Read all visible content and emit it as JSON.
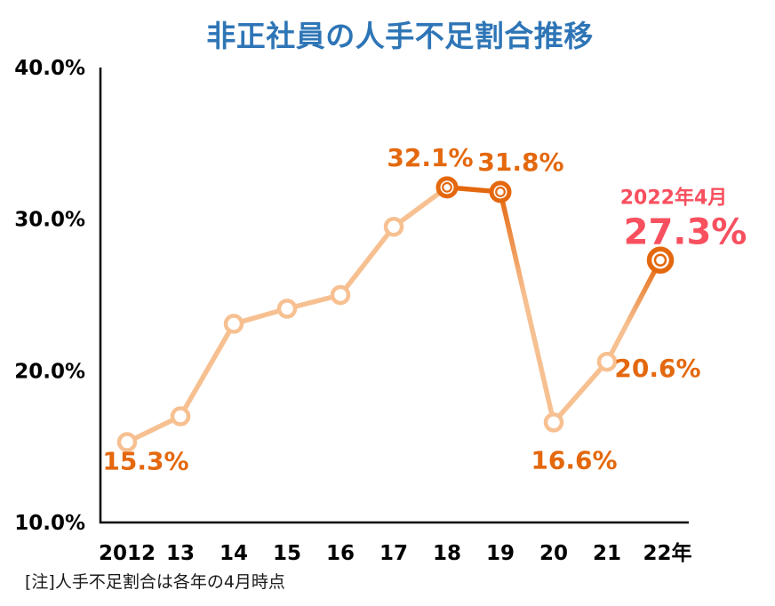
{
  "chart_data": {
    "type": "line",
    "title": "非正社員の人手不足割合推移",
    "note": "[注]人手不足割合は各年の4月時点",
    "categories": [
      "2012",
      "13",
      "14",
      "15",
      "16",
      "17",
      "18",
      "19",
      "20",
      "21",
      "22年"
    ],
    "years": [
      2012,
      2013,
      2014,
      2015,
      2016,
      2017,
      2018,
      2019,
      2020,
      2021,
      2022
    ],
    "values": [
      15.3,
      17.0,
      23.1,
      24.1,
      25.0,
      29.5,
      32.1,
      31.8,
      16.6,
      20.6,
      27.3
    ],
    "ylim": [
      10,
      40
    ],
    "y_ticks": [
      {
        "value": 40,
        "label": "40.0%"
      },
      {
        "value": 30,
        "label": "30.0%"
      },
      {
        "value": 20,
        "label": "20.0%"
      },
      {
        "value": 10,
        "label": "10.0%"
      }
    ],
    "grid": false,
    "legend": false,
    "highlighted_years": [
      2018,
      2019,
      2022
    ],
    "segments": [
      "light",
      "light",
      "light",
      "light",
      "light",
      "light",
      "dark",
      "fade_out",
      "light",
      "fade_in"
    ],
    "point_labels": [
      {
        "year": 2012,
        "text": "15.3%",
        "color": "#E4680E"
      },
      {
        "year": 2018,
        "text": "32.1%",
        "color": "#E4680E"
      },
      {
        "year": 2019,
        "text": "31.8%",
        "color": "#E4680E"
      },
      {
        "year": 2020,
        "text": "16.6%",
        "color": "#E4680E"
      },
      {
        "year": 2021,
        "text": "20.6%",
        "color": "#E4680E"
      },
      {
        "year": 2022,
        "text": "27.3%",
        "color": "#F8505F",
        "annotation": "2022年4月"
      }
    ],
    "colors": {
      "title": "#2E75B6",
      "axis": "#000000",
      "line_light": "#F7C091",
      "line_dark": "#E4680E",
      "label_orange": "#E4680E",
      "label_red": "#F8505F",
      "marker_fill": "#FFFFFF"
    }
  }
}
